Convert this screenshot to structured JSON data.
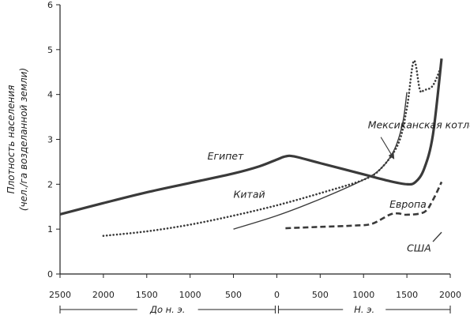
{
  "chart_data": {
    "type": "line",
    "title": "",
    "ylabel_lines": [
      "Плотность населения",
      "(чел./га возделанной земли)"
    ],
    "xlabel": "",
    "xlim": [
      -2500,
      2000
    ],
    "ylim": [
      0,
      6
    ],
    "x_ticks": [
      -2500,
      -2000,
      -1500,
      -1000,
      -500,
      0,
      500,
      1000,
      1500,
      2000
    ],
    "x_tick_labels": [
      "2500",
      "2000",
      "1500",
      "1000",
      "500",
      "0",
      "500",
      "1000",
      "1500",
      "2000"
    ],
    "y_ticks": [
      0,
      1,
      2,
      3,
      4,
      5,
      6
    ],
    "y_tick_labels": [
      "0",
      "1",
      "2",
      "3",
      "4",
      "5",
      "6"
    ],
    "eras": [
      {
        "label": "До н. э.",
        "from": -2500,
        "to": 0
      },
      {
        "label": "Н. э.",
        "from": 0,
        "to": 2000
      }
    ],
    "grid": false,
    "series": [
      {
        "name": "Египет",
        "style": "solid-thick",
        "color": "#3a3a3a",
        "x": [
          -2500,
          -2000,
          -1500,
          -1000,
          -500,
          -200,
          0,
          100,
          200,
          500,
          1000,
          1300,
          1500,
          1600,
          1700,
          1800,
          1900
        ],
        "y": [
          1.33,
          1.58,
          1.82,
          2.03,
          2.24,
          2.4,
          2.55,
          2.62,
          2.62,
          2.47,
          2.22,
          2.07,
          2.0,
          2.05,
          2.35,
          3.1,
          4.8
        ],
        "label": {
          "x": -800,
          "y": 2.55
        }
      },
      {
        "name": "Китай",
        "style": "dotted",
        "color": "#3a3a3a",
        "x": [
          -2000,
          -1500,
          -1000,
          -500,
          0,
          500,
          1000,
          1200,
          1400,
          1500,
          1580,
          1650,
          1700,
          1800,
          1900
        ],
        "y": [
          0.85,
          0.95,
          1.1,
          1.3,
          1.53,
          1.8,
          2.1,
          2.35,
          2.9,
          3.7,
          4.75,
          4.1,
          4.1,
          4.2,
          4.65
        ],
        "label": {
          "x": -500,
          "y": 1.7
        }
      },
      {
        "name": "Мексиканская котловина",
        "style": "solid-thin",
        "color": "#3a3a3a",
        "x": [
          -500,
          0,
          500,
          1000,
          1200,
          1350,
          1450,
          1500
        ],
        "y": [
          1.0,
          1.3,
          1.67,
          2.1,
          2.35,
          2.75,
          3.35,
          4.05
        ],
        "label": {
          "x": 1050,
          "y": 3.25
        },
        "arrow": {
          "from": [
            1200,
            3.05
          ],
          "to": [
            1350,
            2.57
          ]
        }
      },
      {
        "name": "Европа",
        "style": "dashed",
        "color": "#3a3a3a",
        "x": [
          100,
          500,
          900,
          1100,
          1300,
          1400,
          1500,
          1700,
          1800,
          1900
        ],
        "y": [
          1.02,
          1.05,
          1.08,
          1.12,
          1.32,
          1.35,
          1.32,
          1.38,
          1.65,
          2.05
        ],
        "label": {
          "x": 1300,
          "y": 1.48
        }
      },
      {
        "name": "США",
        "style": "solid-thin",
        "color": "#3a3a3a",
        "x": [
          1800,
          1900
        ],
        "y": [
          0.72,
          0.93
        ],
        "label": {
          "x": 1500,
          "y": 0.5
        }
      }
    ]
  }
}
